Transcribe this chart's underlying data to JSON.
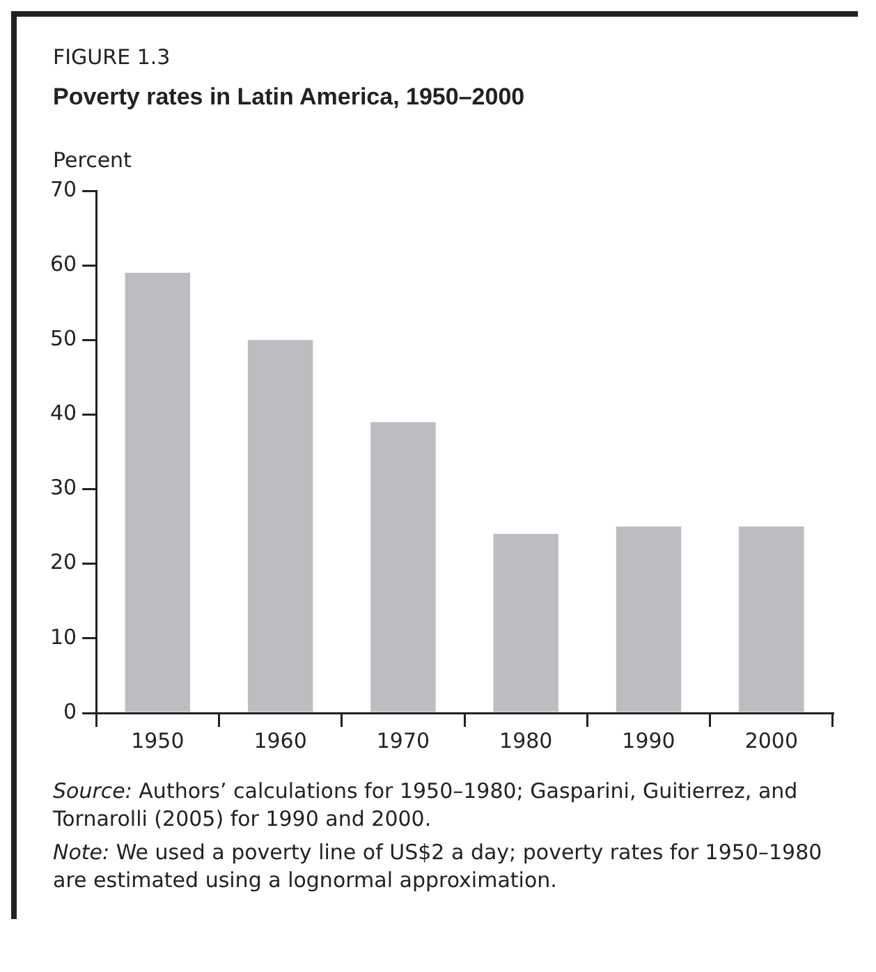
{
  "chart_data": {
    "type": "bar",
    "subtitle": "FIGURE 1.3",
    "title": "Poverty rates in Latin America, 1950–2000",
    "ylabel": "Percent",
    "categories": [
      "1950",
      "1960",
      "1970",
      "1980",
      "1990",
      "2000"
    ],
    "values": [
      59,
      50,
      39,
      24,
      25,
      25
    ],
    "color": "#bcbdc1",
    "ylim": [
      0,
      70
    ],
    "yticks": [
      0,
      10,
      20,
      30,
      40,
      50,
      60,
      70
    ],
    "grid": false,
    "legend": false,
    "annotations": [
      "Source: Authors’ calculations for 1950–1980; Gasparini, Guitierrez, and Tornarolli (2005) for 1990 and 2000.",
      "Note: We used a poverty line of US$2 a day; poverty rates for 1950–1980 are estimated using a lognormal approximation."
    ]
  }
}
